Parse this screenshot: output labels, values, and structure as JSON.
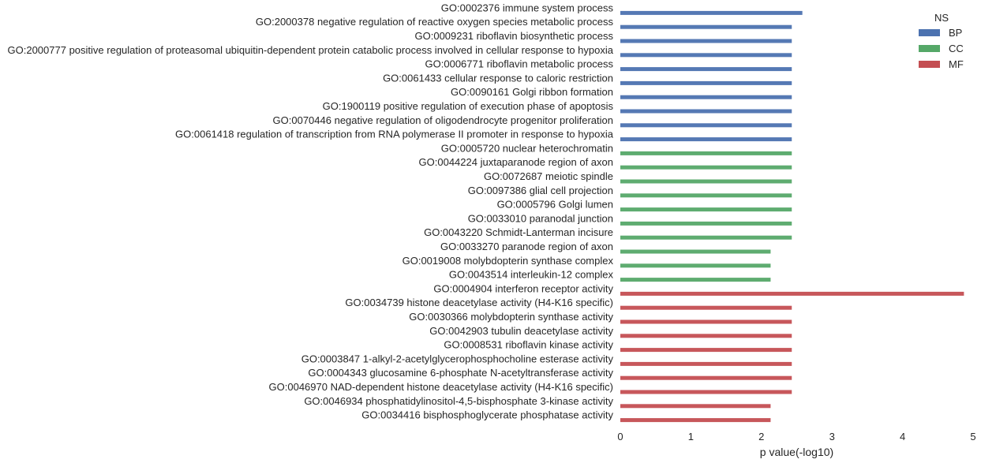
{
  "chart_data": {
    "type": "bar",
    "orientation": "horizontal",
    "xlabel": "p value(-log10)",
    "xlim": [
      0,
      5
    ],
    "xticks": [
      0,
      1,
      2,
      3,
      4,
      5
    ],
    "grid": false,
    "legend": {
      "title": "NS",
      "placement": "top-right",
      "entries": [
        {
          "name": "BP",
          "color": "#4c72b0"
        },
        {
          "name": "CC",
          "color": "#55a868"
        },
        {
          "name": "MF",
          "color": "#c44e52"
        }
      ]
    },
    "categories": [
      "GO:0002376 immune system process",
      "GO:2000378 negative regulation of reactive oxygen species metabolic process",
      "GO:0009231 riboflavin biosynthetic process",
      "GO:2000777 positive regulation of proteasomal ubiquitin-dependent protein catabolic process involved in cellular response to hypoxia",
      "GO:0006771 riboflavin metabolic process",
      "GO:0061433 cellular response to caloric restriction",
      "GO:0090161 Golgi ribbon formation",
      "GO:1900119 positive regulation of execution phase of apoptosis",
      "GO:0070446 negative regulation of oligodendrocyte progenitor proliferation",
      "GO:0061418 regulation of transcription from RNA polymerase II promoter in response to hypoxia",
      "GO:0005720 nuclear heterochromatin",
      "GO:0044224 juxtaparanode region of axon",
      "GO:0072687 meiotic spindle",
      "GO:0097386 glial cell projection",
      "GO:0005796 Golgi lumen",
      "GO:0033010 paranodal junction",
      "GO:0043220 Schmidt-Lanterman incisure",
      "GO:0033270 paranode region of axon",
      "GO:0019008 molybdopterin synthase complex",
      "GO:0043514 interleukin-12 complex",
      "GO:0004904 interferon receptor activity",
      "GO:0034739 histone deacetylase activity (H4-K16 specific)",
      "GO:0030366 molybdopterin synthase activity",
      "GO:0042903 tubulin deacetylase activity",
      "GO:0008531 riboflavin kinase activity",
      "GO:0003847 1-alkyl-2-acetylglycerophosphocholine esterase activity",
      "GO:0004343 glucosamine 6-phosphate N-acetyltransferase activity",
      "GO:0046970 NAD-dependent histone deacetylase activity (H4-K16 specific)",
      "GO:0046934 phosphatidylinositol-4,5-bisphosphate 3-kinase activity",
      "GO:0034416 bisphosphoglycerate phosphatase activity"
    ],
    "series": [
      {
        "name": "BP",
        "color": "#4c72b0",
        "values": [
          2.58,
          2.43,
          2.43,
          2.43,
          2.43,
          2.43,
          2.43,
          2.43,
          2.43,
          2.43,
          null,
          null,
          null,
          null,
          null,
          null,
          null,
          null,
          null,
          null,
          null,
          null,
          null,
          null,
          null,
          null,
          null,
          null,
          null,
          null
        ]
      },
      {
        "name": "CC",
        "color": "#55a868",
        "values": [
          null,
          null,
          null,
          null,
          null,
          null,
          null,
          null,
          null,
          null,
          2.43,
          2.43,
          2.43,
          2.43,
          2.43,
          2.43,
          2.43,
          2.13,
          2.13,
          2.13,
          null,
          null,
          null,
          null,
          null,
          null,
          null,
          null,
          null,
          null
        ]
      },
      {
        "name": "MF",
        "color": "#c44e52",
        "values": [
          null,
          null,
          null,
          null,
          null,
          null,
          null,
          null,
          null,
          null,
          null,
          null,
          null,
          null,
          null,
          null,
          null,
          null,
          null,
          null,
          4.87,
          2.43,
          2.43,
          2.43,
          2.43,
          2.43,
          2.43,
          2.43,
          2.13,
          2.13
        ]
      }
    ]
  }
}
